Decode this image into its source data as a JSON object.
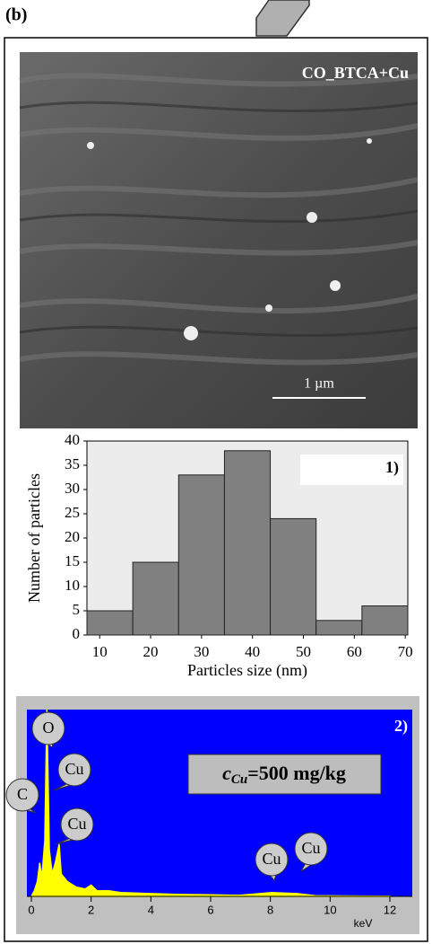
{
  "figure": {
    "panel_label": "(b)",
    "image_label": "CO_BTCA+Cu",
    "scale_bar_label": "1 µm"
  },
  "chart_data": [
    {
      "type": "histogram",
      "annotation": "1)",
      "x_label": "Particles size (nm)",
      "y_label": "Number of particles",
      "bins": [
        7.5,
        16.5,
        25.5,
        34.5,
        43.5,
        52.5,
        61.5,
        70.5
      ],
      "values": [
        5,
        15,
        33,
        38,
        24,
        3,
        6
      ],
      "color": "#808080",
      "xlim": [
        7.5,
        70.5
      ],
      "xticks": [
        10,
        20,
        30,
        40,
        50,
        60,
        70
      ],
      "ylim": [
        0,
        40
      ],
      "yticks": [
        0,
        5,
        10,
        15,
        20,
        25,
        30,
        35,
        40
      ]
    },
    {
      "type": "area",
      "annotation": "2)",
      "x_label": "keV",
      "concentration_label": {
        "symbol": "c",
        "subscript": "Cu",
        "text": "=500 mg/kg"
      },
      "peak_labels": [
        "O",
        "Cu",
        "Cu",
        "C",
        "Cu",
        "Cu"
      ],
      "x": [
        0,
        0.1,
        0.2,
        0.28,
        0.35,
        0.45,
        0.52,
        0.6,
        0.7,
        0.8,
        0.93,
        1.0,
        1.2,
        1.5,
        1.8,
        2.0,
        2.2,
        2.6,
        3,
        4,
        5,
        6,
        7,
        8.04,
        8.9,
        9.5,
        10,
        11,
        12
      ],
      "values": [
        0,
        3,
        8,
        18,
        10,
        30,
        100,
        25,
        12,
        18,
        28,
        12,
        8,
        5,
        4,
        6,
        3,
        3,
        2,
        1.5,
        1,
        0.8,
        0.6,
        2,
        1.5,
        0.4,
        0.3,
        0.2,
        0.1
      ],
      "color": "#ffff00",
      "background": "#0000ff",
      "xlim": [
        -0.15,
        12.75
      ],
      "xticks": [
        0,
        2,
        4,
        6,
        8,
        10,
        12
      ],
      "ylim": [
        0,
        100
      ]
    }
  ]
}
